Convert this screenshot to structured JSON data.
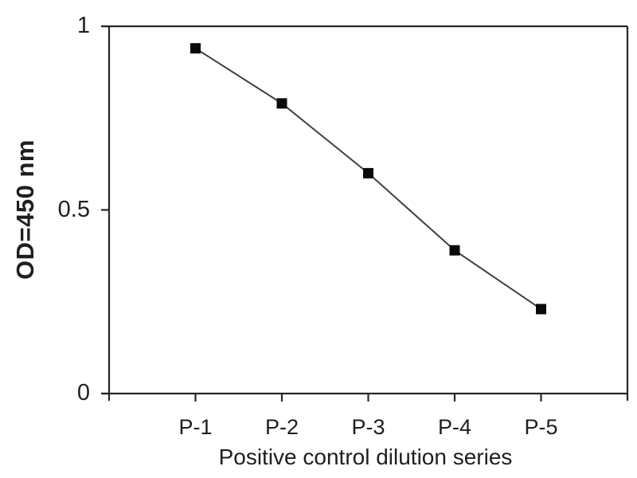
{
  "chart_data": {
    "type": "line",
    "title": "",
    "categories": [
      "P-1",
      "P-2",
      "P-3",
      "P-4",
      "P-5"
    ],
    "series": [
      {
        "name": "Positive control",
        "values": [
          0.94,
          0.79,
          0.6,
          0.39,
          0.23
        ]
      }
    ],
    "xlabel": "Positive control dilution series",
    "ylabel": "OD=450 nm",
    "ylim": [
      0,
      1
    ],
    "yticks": [
      0,
      0.5,
      1
    ],
    "ytick_labels": [
      "0",
      "0.5",
      "1"
    ],
    "grid": false,
    "legend_position": "none",
    "marker": "filled-square",
    "colors": {
      "line": "#3f3f3f",
      "marker": "#0a0a0a",
      "axis": "#262626",
      "text": "#1f1f1f",
      "background": "#ffffff"
    }
  }
}
